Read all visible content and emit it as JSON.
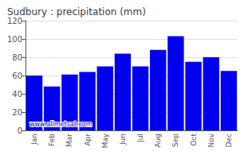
{
  "chart_data": {
    "type": "bar",
    "title": "Sudbury : precipitation (mm)",
    "categories": [
      "Jan",
      "Feb",
      "Mar",
      "Apr",
      "May",
      "Jun",
      "Jul",
      "Aug",
      "Sep",
      "Oct",
      "Nov",
      "Dec"
    ],
    "values": [
      60,
      48,
      61,
      64,
      70,
      84,
      70,
      88,
      103,
      75,
      80,
      65
    ],
    "color": "#0000ee",
    "ylim": [
      0,
      120
    ],
    "yticks": [
      0,
      20,
      40,
      60,
      80,
      100,
      120
    ],
    "grid": true,
    "annotation": "www.allmetsat.com"
  }
}
